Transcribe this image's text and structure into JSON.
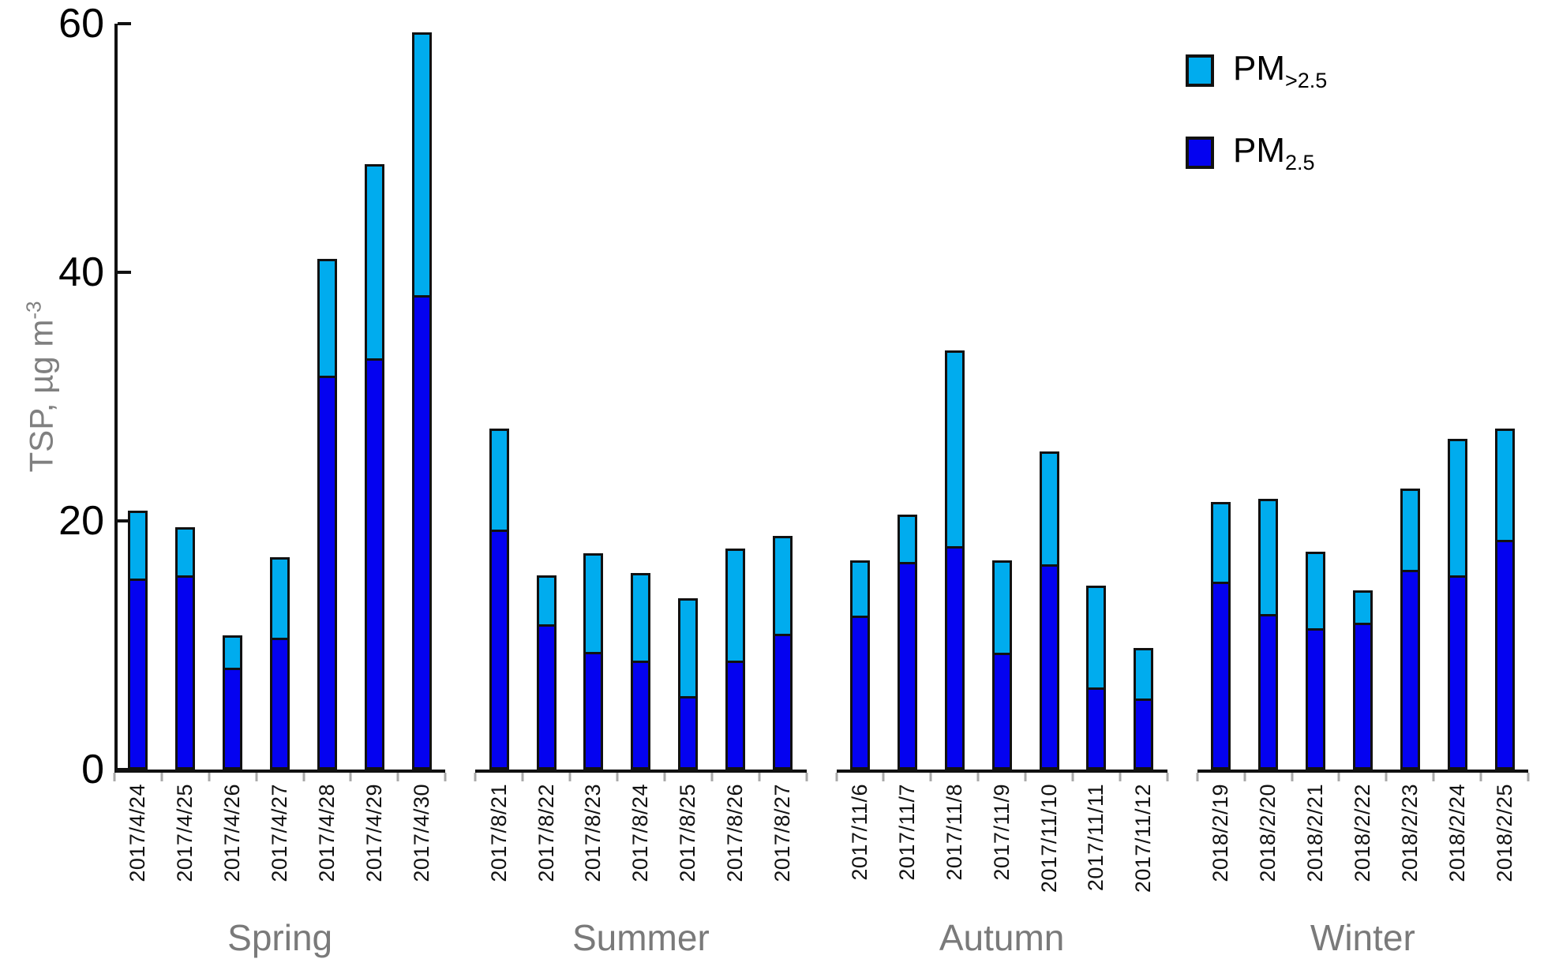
{
  "chart_data": {
    "type": "bar",
    "stacked": true,
    "title": "",
    "ylabel_main": "TSP, µg m",
    "ylabel_sup": "-3",
    "ylim": [
      0,
      60
    ],
    "yticks": [
      0,
      20,
      40,
      60
    ],
    "grid": false,
    "legend_position": "top-right",
    "colors": {
      "pm_gt25": "#00ACEE",
      "pm25": "#0402F0",
      "outline": "#111111",
      "axis_text": "#000000",
      "muted_text": "#7a7a7a",
      "minor_tick": "#a9a9a9"
    },
    "legend": [
      {
        "label_main": "PM",
        "label_sub": ">2.5",
        "color": "#00ACEE"
      },
      {
        "label_main": "PM",
        "label_sub": "2.5",
        "color": "#0402F0"
      }
    ],
    "groups": [
      {
        "season": "Spring",
        "dates": [
          "2017/4/24",
          "2017/4/25",
          "2017/4/26",
          "2017/4/27",
          "2017/4/28",
          "2017/4/29",
          "2017/4/30"
        ],
        "pm25": [
          15.2,
          15.4,
          8.0,
          10.4,
          31.5,
          32.9,
          38.0
        ],
        "pm_gt25": [
          5.6,
          4.1,
          2.8,
          6.7,
          9.6,
          15.8,
          21.3
        ]
      },
      {
        "season": "Summer",
        "dates": [
          "2017/8/21",
          "2017/8/22",
          "2017/8/23",
          "2017/8/24",
          "2017/8/25",
          "2017/8/26",
          "2017/8/27"
        ],
        "pm25": [
          19.1,
          11.5,
          9.3,
          8.6,
          5.7,
          8.6,
          10.7
        ],
        "pm_gt25": [
          8.3,
          4.1,
          8.1,
          7.2,
          8.1,
          9.2,
          8.1
        ]
      },
      {
        "season": "Autumn",
        "dates": [
          "2017/11/6",
          "2017/11/7",
          "2017/11/8",
          "2017/11/9",
          "2017/11/10",
          "2017/11/11",
          "2017/11/12"
        ],
        "pm25": [
          12.2,
          16.5,
          17.8,
          9.2,
          16.3,
          6.4,
          5.5
        ],
        "pm_gt25": [
          4.6,
          4.0,
          15.9,
          7.6,
          9.3,
          8.4,
          4.3
        ]
      },
      {
        "season": "Winter",
        "dates": [
          "2018/2/19",
          "2018/2/20",
          "2018/2/21",
          "2018/2/22",
          "2018/2/23",
          "2018/2/24",
          "2018/2/25"
        ],
        "pm25": [
          14.9,
          12.3,
          11.2,
          11.6,
          15.9,
          15.4,
          18.3
        ],
        "pm_gt25": [
          6.6,
          9.5,
          6.3,
          2.8,
          6.7,
          11.2,
          9.1
        ]
      }
    ]
  }
}
